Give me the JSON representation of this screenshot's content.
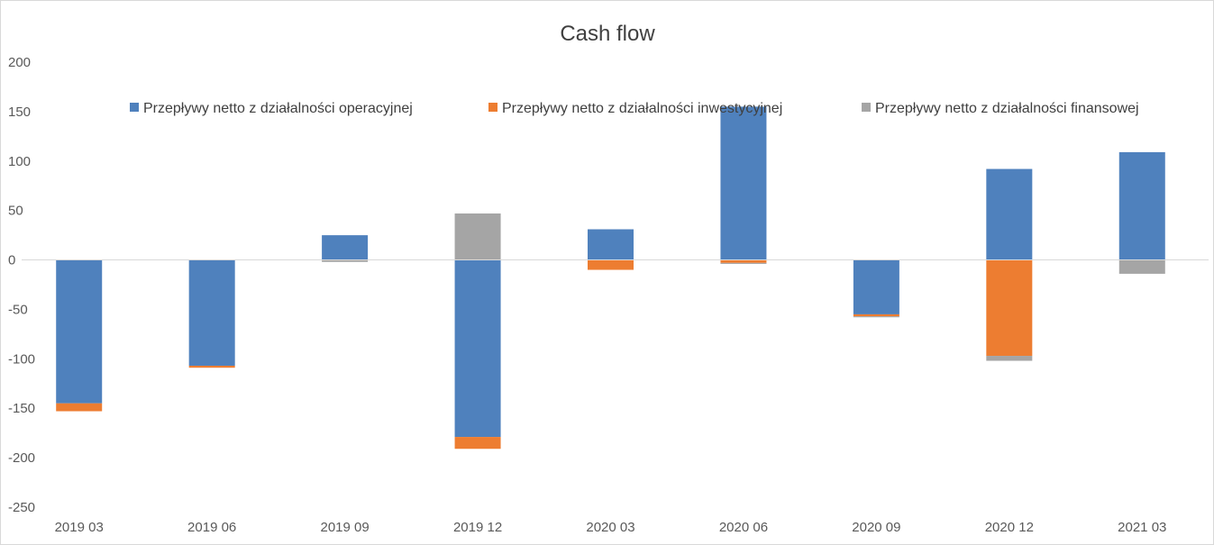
{
  "chart_data": {
    "type": "bar",
    "stacked": true,
    "title": "Cash flow",
    "xlabel": "",
    "ylabel": "",
    "ylim": [
      -250,
      200
    ],
    "yticks": [
      200,
      150,
      100,
      50,
      0,
      -50,
      -100,
      -150,
      -200,
      -250
    ],
    "ytick_labels": [
      "200",
      "150",
      "100",
      "50",
      "0",
      "-50",
      "-100",
      "-150",
      "-200",
      "-250"
    ],
    "grid": false,
    "legend_position": "top",
    "categories": [
      "2019 03",
      "2019 06",
      "2019 09",
      "2019 12",
      "2020 03",
      "2020 06",
      "2020 09",
      "2020 12",
      "2021 03"
    ],
    "series": [
      {
        "name": "Przepływy netto z działalności operacyjnej",
        "color": "#4f81bd",
        "values": [
          -145,
          -107,
          25,
          -179,
          31,
          155,
          -55,
          92,
          109
        ]
      },
      {
        "name": "Przepływy netto z działalności inwestycyjnej",
        "color": "#ed7d31",
        "values": [
          -8,
          -2,
          0,
          -12,
          -10,
          -3,
          -2,
          -97,
          0
        ]
      },
      {
        "name": "Przepływy netto z działalności finansowej",
        "color": "#a5a5a5",
        "values": [
          0,
          0,
          -2,
          47,
          0,
          -1,
          -1,
          -5,
          -14
        ]
      }
    ]
  }
}
